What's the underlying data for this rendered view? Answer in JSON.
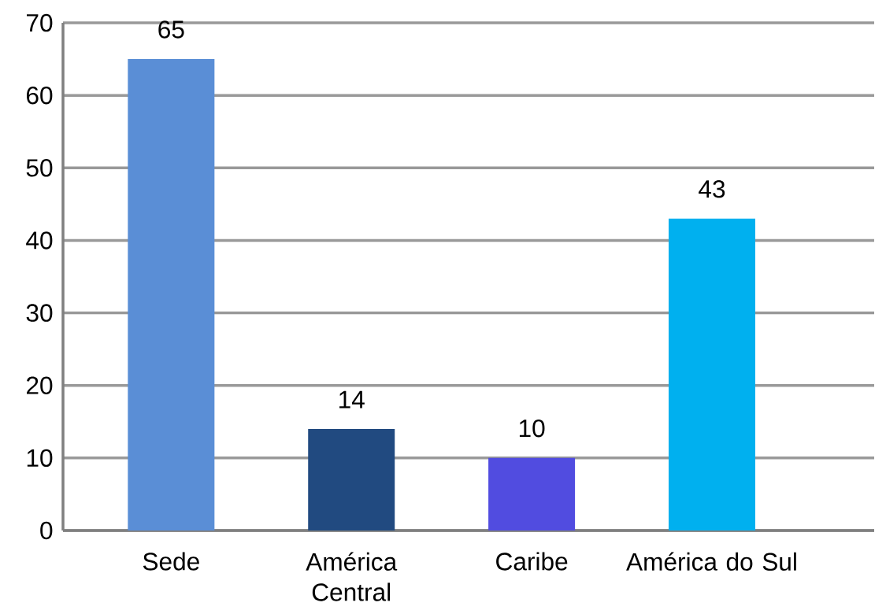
{
  "chart_data": {
    "type": "bar",
    "categories": [
      "Sede",
      "América Central",
      "Caribe",
      "América do Sul"
    ],
    "values": [
      65,
      14,
      10,
      43
    ],
    "colors": [
      "#5a8ed6",
      "#214a80",
      "#514ce0",
      "#00b0ef"
    ],
    "ylim": [
      0,
      70
    ],
    "yticks": [
      0,
      10,
      20,
      30,
      40,
      50,
      60,
      70
    ],
    "grid": "y",
    "data_labels": true
  }
}
